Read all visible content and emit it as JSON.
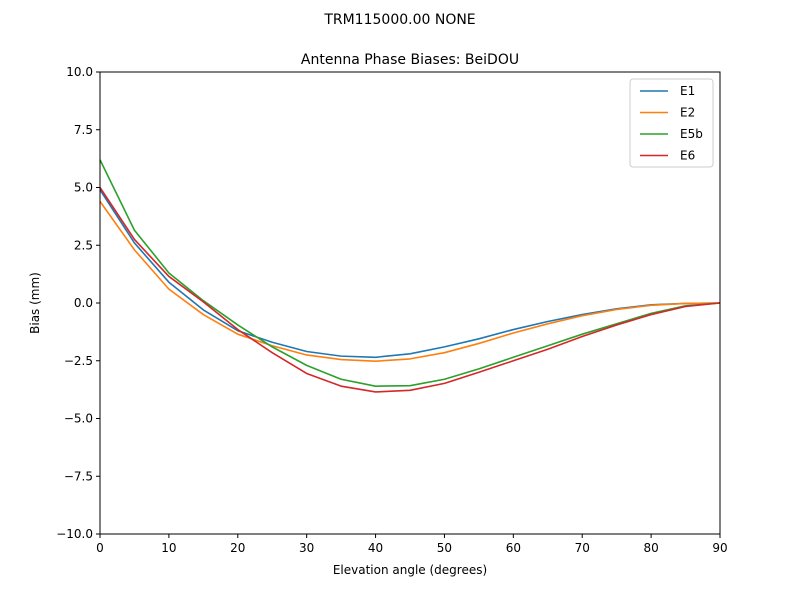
{
  "suptitle": "TRM115000.00    NONE",
  "chart_data": {
    "type": "line",
    "title": "Antenna Phase Biases: BeiDOU",
    "xlabel": "Elevation angle (degrees)",
    "ylabel": "Bias (mm)",
    "xlim": [
      0,
      90
    ],
    "ylim": [
      -10,
      10
    ],
    "xticks": [
      0,
      10,
      20,
      30,
      40,
      50,
      60,
      70,
      80,
      90
    ],
    "xtick_labels": [
      "0",
      "10",
      "20",
      "30",
      "40",
      "50",
      "60",
      "70",
      "80",
      "90"
    ],
    "yticks": [
      -10,
      -7.5,
      -5,
      -2.5,
      0,
      2.5,
      5,
      7.5,
      10
    ],
    "ytick_labels": [
      "−10.0",
      "−7.5",
      "−5.0",
      "−2.5",
      "0.0",
      "2.5",
      "5.0",
      "7.5",
      "10.0"
    ],
    "grid": false,
    "legend_position": "top-right",
    "x": [
      0,
      5,
      10,
      15,
      20,
      25,
      30,
      35,
      40,
      45,
      50,
      55,
      60,
      65,
      70,
      75,
      80,
      85,
      90
    ],
    "series": [
      {
        "name": "E1",
        "color": "#1f77b4",
        "values": [
          4.9,
          2.6,
          0.9,
          -0.3,
          -1.2,
          -1.7,
          -2.1,
          -2.3,
          -2.35,
          -2.2,
          -1.9,
          -1.55,
          -1.15,
          -0.8,
          -0.5,
          -0.25,
          -0.08,
          -0.02,
          0.0
        ]
      },
      {
        "name": "E2",
        "color": "#ff7f0e",
        "values": [
          4.4,
          2.3,
          0.6,
          -0.5,
          -1.35,
          -1.85,
          -2.25,
          -2.45,
          -2.52,
          -2.42,
          -2.15,
          -1.75,
          -1.3,
          -0.9,
          -0.55,
          -0.28,
          -0.1,
          -0.02,
          0.0
        ]
      },
      {
        "name": "E5b",
        "color": "#2ca02c",
        "values": [
          6.2,
          3.15,
          1.3,
          0.1,
          -0.95,
          -1.9,
          -2.7,
          -3.3,
          -3.6,
          -3.58,
          -3.3,
          -2.85,
          -2.35,
          -1.85,
          -1.35,
          -0.9,
          -0.45,
          -0.12,
          0.0
        ]
      },
      {
        "name": "E6",
        "color": "#d62728",
        "values": [
          5.0,
          2.75,
          1.15,
          0.05,
          -1.15,
          -2.15,
          -3.05,
          -3.6,
          -3.85,
          -3.78,
          -3.48,
          -3.0,
          -2.5,
          -2.0,
          -1.45,
          -0.95,
          -0.5,
          -0.15,
          0.0
        ]
      }
    ]
  }
}
